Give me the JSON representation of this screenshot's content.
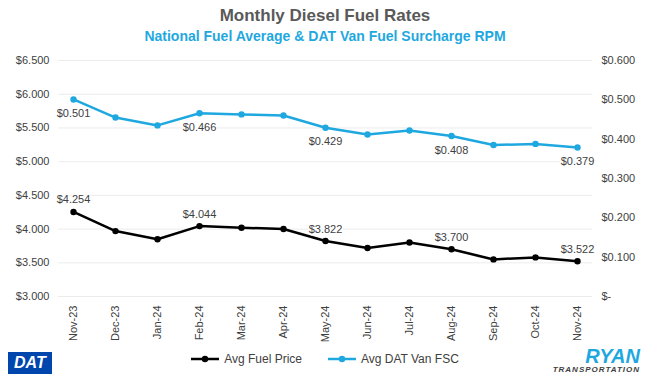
{
  "chart_data": {
    "type": "line",
    "title": "Monthly Diesel Fuel Rates",
    "subtitle": "National Fuel Average & DAT Van Fuel Surcharge RPM",
    "logos": [
      "DAT",
      "RYAN TRANSPORTATION"
    ],
    "categories": [
      "Nov-23",
      "Dec-23",
      "Jan-24",
      "Feb-24",
      "Mar-24",
      "Apr-24",
      "May-24",
      "Jun-24",
      "Jul-24",
      "Aug-24",
      "Sep-24",
      "Oct-24",
      "Nov-24"
    ],
    "series": [
      {
        "name": "Avg Fuel Price",
        "color": "#000000",
        "marker": "circle",
        "values": [
          4.254,
          3.97,
          3.85,
          4.044,
          4.02,
          4.0,
          3.822,
          3.72,
          3.8,
          3.7,
          3.55,
          3.58,
          3.522
        ],
        "value_labels": [
          "$4.254",
          null,
          null,
          "$4.044",
          null,
          null,
          "$3.822",
          null,
          null,
          "$3.700",
          null,
          null,
          "$3.522"
        ]
      },
      {
        "name": "Avg DAT Van FSC",
        "color": "#1fa8e0",
        "marker": "circle",
        "axis": "y2",
        "values": [
          0.501,
          0.455,
          0.435,
          0.466,
          0.463,
          0.46,
          0.429,
          0.412,
          0.422,
          0.408,
          0.385,
          0.388,
          0.379
        ],
        "value_labels": [
          "$0.501",
          null,
          null,
          "$0.466",
          null,
          null,
          "$0.429",
          null,
          null,
          "$0.408",
          null,
          null,
          "$0.379"
        ]
      }
    ],
    "ylim": [
      3.0,
      6.5
    ],
    "yticks": [
      {
        "value": 3.0,
        "label": "$3.000"
      },
      {
        "value": 3.5,
        "label": "$3.500"
      },
      {
        "value": 4.0,
        "label": "$4.000"
      },
      {
        "value": 4.5,
        "label": "$4.500"
      },
      {
        "value": 5.0,
        "label": "$5.000"
      },
      {
        "value": 5.5,
        "label": "$5.500"
      },
      {
        "value": 6.0,
        "label": "$6.000"
      },
      {
        "value": 6.5,
        "label": "$6.500"
      }
    ],
    "y2lim": [
      0,
      0.6
    ],
    "y2ticks": [
      {
        "value": 0,
        "label": "$-"
      },
      {
        "value": 0.1,
        "label": "$0.100"
      },
      {
        "value": 0.2,
        "label": "$0.200"
      },
      {
        "value": 0.3,
        "label": "$0.300"
      },
      {
        "value": 0.4,
        "label": "$0.400"
      },
      {
        "value": 0.5,
        "label": "$0.500"
      },
      {
        "value": 0.6,
        "label": "$0.600"
      }
    ],
    "grid": true,
    "data_labels": true,
    "legend": "bottom"
  }
}
